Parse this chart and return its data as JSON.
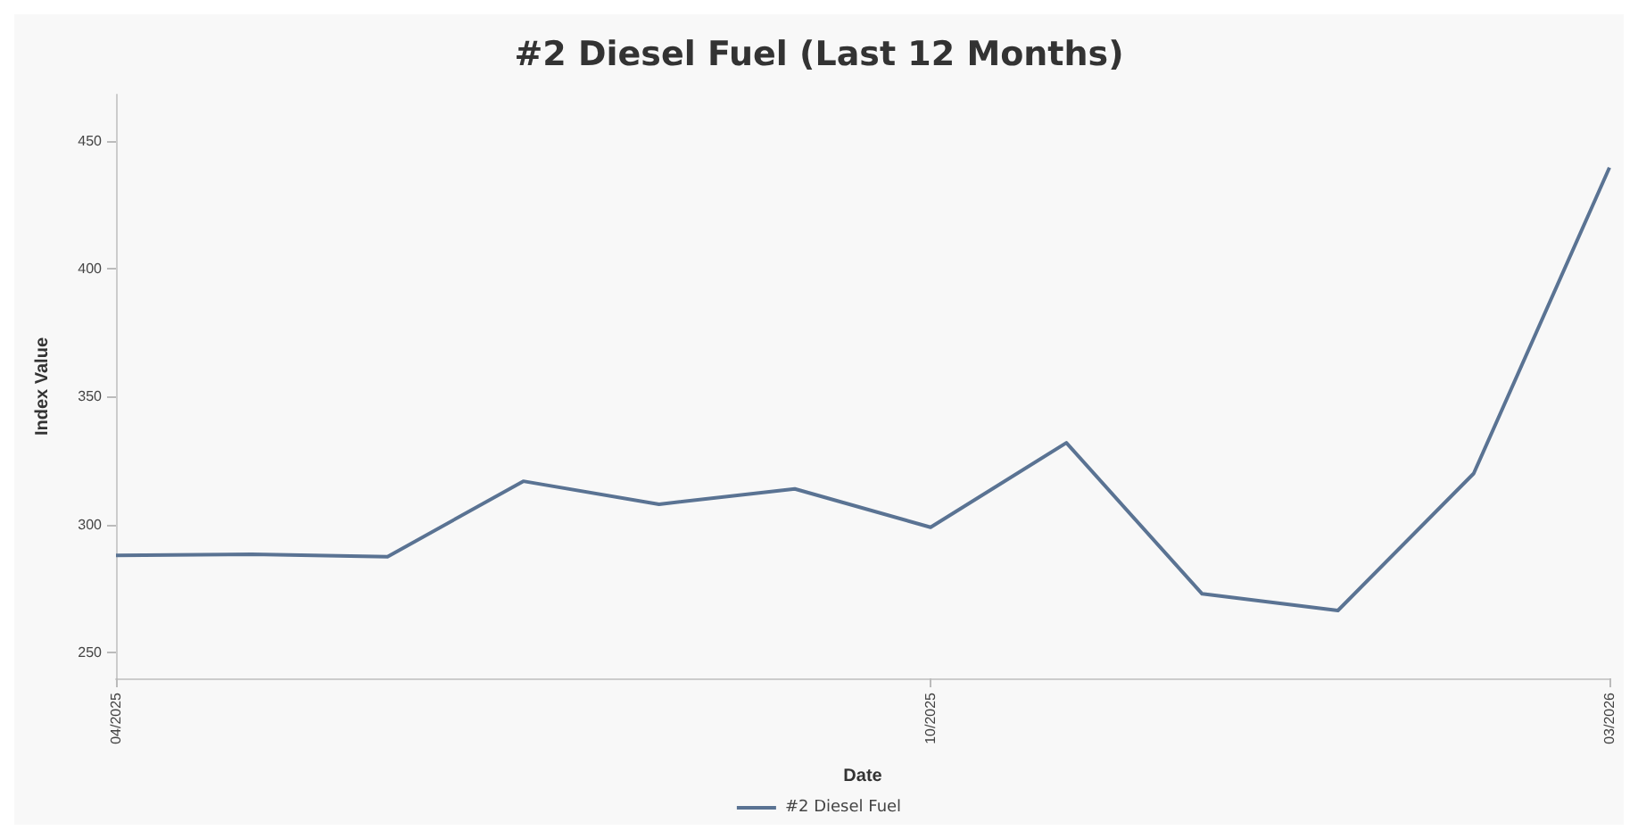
{
  "chart_data": {
    "type": "line",
    "title": "#2 Diesel Fuel (Last 12 Months)",
    "xlabel": "Date",
    "ylabel": "Index Value",
    "categories": [
      "04/2025",
      null,
      null,
      null,
      null,
      null,
      "10/2025",
      null,
      null,
      null,
      null,
      "03/2026"
    ],
    "series": [
      {
        "name": "#2 Diesel Fuel",
        "color": "#5a7393",
        "values": [
          288,
          288.5,
          287.5,
          317,
          308,
          314,
          299,
          332,
          273,
          266.5,
          320,
          439.5
        ]
      }
    ],
    "ylim": [
      240,
      468
    ],
    "yticks": [
      250,
      300,
      350,
      400,
      450
    ],
    "grid": false,
    "legend": "bottom",
    "marker": "none"
  }
}
